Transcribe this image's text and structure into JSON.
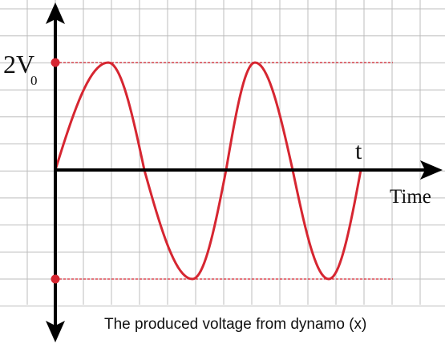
{
  "labels": {
    "amplitude": "2V",
    "amplitude_subscript": "0",
    "t_label": "t",
    "time_axis": "Time"
  },
  "caption": "The produced voltage from dynamo (x)"
}
